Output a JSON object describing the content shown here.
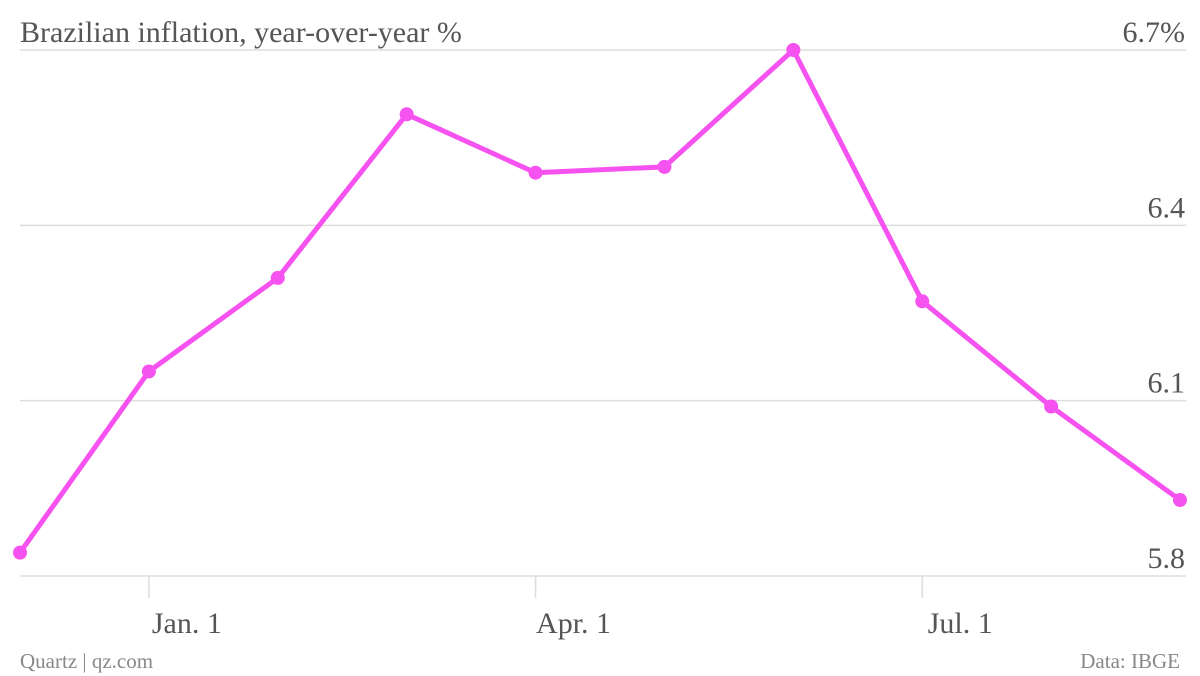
{
  "chart_data": {
    "type": "line",
    "title": "Brazilian inflation, year-over-year %",
    "categories": [
      null,
      "Jan. 1",
      null,
      null,
      "Apr. 1",
      null,
      null,
      "Jul. 1",
      null,
      null
    ],
    "series": [
      {
        "name": null,
        "color": "#f652f0",
        "values": [
          5.84,
          6.15,
          6.31,
          6.59,
          6.49,
          6.5,
          6.7,
          6.27,
          6.09,
          5.93
        ]
      }
    ],
    "ylim": [
      5.8,
      6.7
    ],
    "yticks": [
      5.8,
      6.1,
      6.4,
      {
        "value": 6.7,
        "label": "6.7%"
      }
    ],
    "grid": true,
    "source": "Data: IBGE",
    "credit": "Quartz | qz.com"
  }
}
